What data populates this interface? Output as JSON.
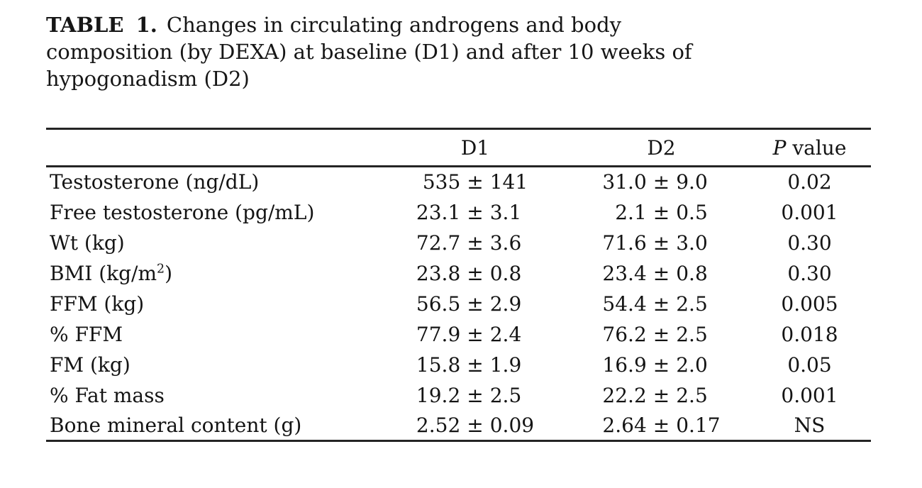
{
  "title": {
    "label": "TABLE 1.",
    "lines": [
      "Changes in circulating androgens and body",
      "composition (by DEXA) at baseline (D1) and after 10 weeks of",
      "hypogonadism (D2)"
    ]
  },
  "table": {
    "pm": "±",
    "columns": {
      "d1": "D1",
      "d2": "D2",
      "p_italic": "P",
      "p_rest": " value"
    },
    "rows": [
      {
        "label": "Testosterone (ng/dL)",
        "d1": {
          "mean": "535",
          "err": "141"
        },
        "d2": {
          "mean": "31.0",
          "err": "9.0"
        },
        "p": "0.02"
      },
      {
        "label": "Free testosterone (pg/mL)",
        "d1": {
          "mean": "23.1",
          "err": "3.1"
        },
        "d2": {
          "mean": "2.1",
          "err": "0.5"
        },
        "p": "0.001"
      },
      {
        "label": "Wt (kg)",
        "d1": {
          "mean": "72.7",
          "err": "3.6"
        },
        "d2": {
          "mean": "71.6",
          "err": "3.0"
        },
        "p": "0.30"
      },
      {
        "label": "BMI (kg/m",
        "label_sup": "2",
        "label_end": ")",
        "d1": {
          "mean": "23.8",
          "err": "0.8"
        },
        "d2": {
          "mean": "23.4",
          "err": "0.8"
        },
        "p": "0.30"
      },
      {
        "label": "FFM (kg)",
        "d1": {
          "mean": "56.5",
          "err": "2.9"
        },
        "d2": {
          "mean": "54.4",
          "err": "2.5"
        },
        "p": "0.005"
      },
      {
        "label": "% FFM",
        "d1": {
          "mean": "77.9",
          "err": "2.4"
        },
        "d2": {
          "mean": "76.2",
          "err": "2.5"
        },
        "p": "0.018"
      },
      {
        "label": "FM (kg)",
        "d1": {
          "mean": "15.8",
          "err": "1.9"
        },
        "d2": {
          "mean": "16.9",
          "err": "2.0"
        },
        "p": "0.05"
      },
      {
        "label": "% Fat mass",
        "d1": {
          "mean": "19.2",
          "err": "2.5"
        },
        "d2": {
          "mean": "22.2",
          "err": "2.5"
        },
        "p": "0.001"
      },
      {
        "label": "Bone mineral content (g)",
        "d1": {
          "mean": "2.52",
          "err": "0.09"
        },
        "d2": {
          "mean": "2.64",
          "err": "0.17"
        },
        "p": "NS"
      }
    ]
  }
}
